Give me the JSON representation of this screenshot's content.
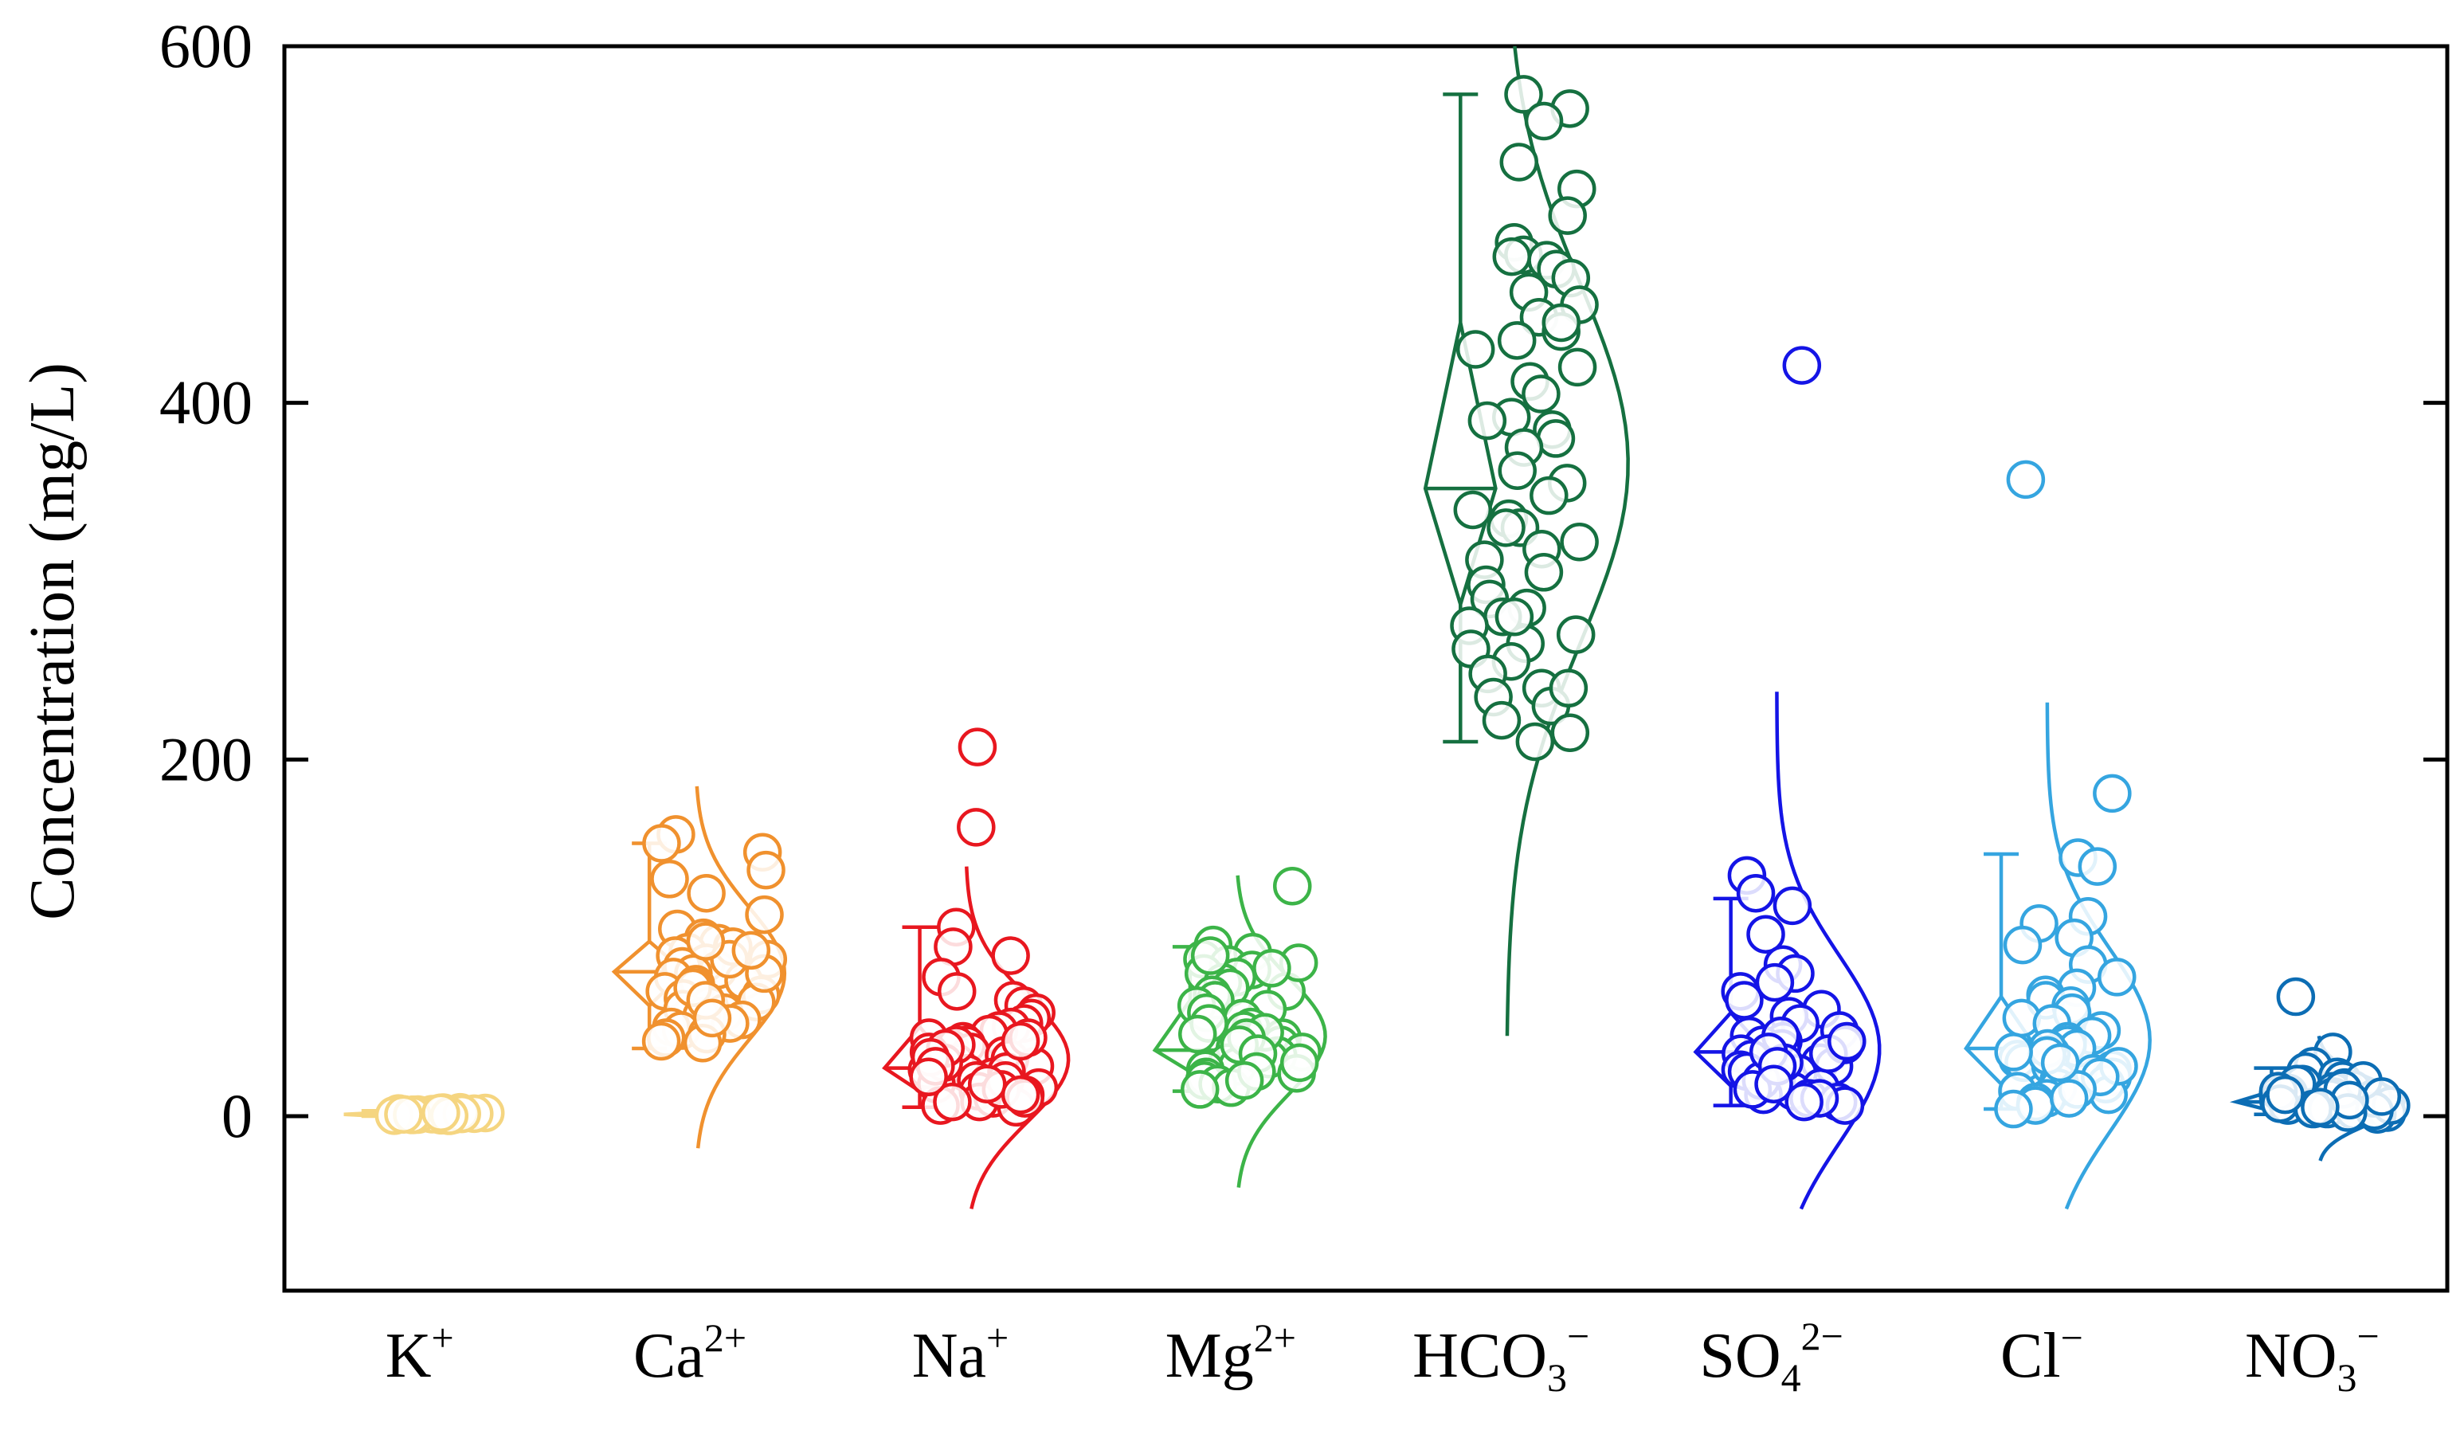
{
  "chart_data": {
    "type": "box-scatter-distribution",
    "title": "",
    "xlabel": "",
    "ylabel": "Concentration (mg/L)",
    "ylim": [
      -100,
      600
    ],
    "yticks": [
      0,
      200,
      400,
      600
    ],
    "ytick_labels": [
      "0",
      "200",
      "400",
      "600"
    ],
    "grid": false,
    "categories": [
      {
        "key": "K",
        "base": "K",
        "sub": "",
        "sup": "+",
        "color": "#F5D580",
        "whisker_low": 0,
        "whisker_high": 3,
        "box_low": 0,
        "box_high": 2,
        "median": 1,
        "curve_low": -2,
        "curve_high": 5,
        "curve_width": 0.05,
        "points": [
          0.5,
          1,
          1.5,
          0.8,
          1.2,
          2,
          0.3,
          1.8,
          0.6,
          1.1,
          0.9,
          1.4,
          2.2,
          0.4,
          1.6,
          0.7,
          1.3,
          1.0,
          0.2,
          1.9
        ]
      },
      {
        "key": "Ca",
        "base": "Ca",
        "sub": "",
        "sup": "2+",
        "color": "#F0912E",
        "whisker_low": 38,
        "whisker_high": 153,
        "box_low": 62,
        "box_high": 98,
        "median": 81,
        "curve_low": -18,
        "curve_high": 185,
        "curve_width": 0.33,
        "points": [
          158,
          153,
          148,
          138,
          133,
          125,
          113,
          105,
          100,
          97,
          95,
          92,
          90,
          88,
          86,
          84,
          82,
          80,
          78,
          76,
          74,
          72,
          70,
          68,
          66,
          64,
          62,
          60,
          58,
          56,
          54,
          52,
          50,
          48,
          46,
          44,
          42,
          41,
          95,
          88,
          80,
          72,
          65,
          55,
          98,
          93
        ]
      },
      {
        "key": "Na",
        "base": "Na",
        "sub": "",
        "sup": "+",
        "color": "#E8171F",
        "whisker_low": 5,
        "whisker_high": 106,
        "box_low": 14,
        "box_high": 50,
        "median": 27,
        "curve_low": -52,
        "curve_high": 140,
        "curve_width": 0.38,
        "points": [
          207,
          162,
          106,
          95,
          90,
          78,
          70,
          65,
          62,
          58,
          55,
          52,
          50,
          48,
          46,
          44,
          42,
          40,
          38,
          36,
          34,
          32,
          30,
          28,
          26,
          24,
          22,
          20,
          18,
          16,
          14,
          12,
          10,
          8,
          6,
          5,
          44,
          40,
          36,
          30,
          25,
          20,
          15,
          10,
          8,
          42,
          38,
          33,
          28,
          22,
          18,
          12
        ]
      },
      {
        "key": "Mg",
        "base": "Mg",
        "sub": "",
        "sup": "2+",
        "color": "#3CB448",
        "whisker_low": 14,
        "whisker_high": 95,
        "box_low": 25,
        "box_high": 65,
        "median": 37,
        "curve_low": -40,
        "curve_high": 135,
        "curve_width": 0.33,
        "points": [
          129,
          96,
          92,
          88,
          85,
          82,
          80,
          78,
          75,
          72,
          70,
          68,
          65,
          62,
          60,
          58,
          55,
          52,
          50,
          48,
          46,
          44,
          42,
          40,
          38,
          36,
          34,
          32,
          30,
          28,
          26,
          24,
          22,
          20,
          18,
          16,
          15,
          47,
          44,
          40,
          35,
          30,
          25,
          20,
          90,
          86,
          83
        ]
      },
      {
        "key": "HCO3",
        "base": "HCO",
        "sub": "3",
        "sup": "−",
        "color": "#157040",
        "whisker_low": 210,
        "whisker_high": 573,
        "box_low": 287,
        "box_high": 445,
        "median": 352,
        "curve_low": 45,
        "curve_high": 600,
        "curve_width": 0.45,
        "points": [
          573,
          565,
          558,
          535,
          520,
          505,
          490,
          483,
          480,
          475,
          470,
          462,
          455,
          448,
          440,
          435,
          430,
          420,
          412,
          405,
          392,
          385,
          380,
          375,
          362,
          355,
          348,
          340,
          335,
          330,
          322,
          318,
          312,
          305,
          298,
          290,
          285,
          280,
          275,
          270,
          265,
          262,
          255,
          248,
          240,
          235,
          230,
          222,
          215,
          210,
          482,
          445,
          390,
          330,
          280,
          240
        ]
      },
      {
        "key": "SO4",
        "base": "SO",
        "sub": "4",
        "sup": "2−",
        "color": "#1414E6",
        "whisker_low": 6,
        "whisker_high": 122,
        "box_low": 17,
        "box_high": 58,
        "median": 36,
        "curve_low": -52,
        "curve_high": 238,
        "curve_width": 0.38,
        "points": [
          421,
          135,
          125,
          118,
          102,
          85,
          80,
          75,
          70,
          65,
          60,
          56,
          52,
          48,
          45,
          42,
          40,
          38,
          35,
          32,
          30,
          28,
          26,
          24,
          22,
          20,
          18,
          16,
          14,
          12,
          10,
          8,
          6,
          45,
          40,
          35,
          30,
          25,
          20,
          15,
          10,
          8,
          42,
          36,
          28,
          18
        ]
      },
      {
        "key": "Cl",
        "base": "Cl",
        "sub": "",
        "sup": "−",
        "color": "#35A5E0",
        "whisker_low": 4,
        "whisker_high": 147,
        "box_low": 18,
        "box_high": 67,
        "median": 38,
        "curve_low": -52,
        "curve_high": 232,
        "curve_width": 0.38,
        "points": [
          357,
          181,
          145,
          140,
          112,
          108,
          100,
          96,
          85,
          78,
          72,
          68,
          65,
          62,
          58,
          55,
          52,
          48,
          45,
          42,
          40,
          38,
          35,
          32,
          30,
          28,
          26,
          24,
          22,
          20,
          18,
          16,
          14,
          12,
          10,
          8,
          6,
          4,
          38,
          34,
          28,
          22,
          15,
          10,
          36,
          30
        ]
      },
      {
        "key": "NO3",
        "base": "NO",
        "sub": "3",
        "sup": "−",
        "color": "#0C6DB4",
        "whisker_low": 1,
        "whisker_high": 27,
        "box_low": 3,
        "box_high": 14,
        "median": 8,
        "curve_low": -25,
        "curve_high": 45,
        "curve_width": 0.32,
        "points": [
          67,
          36,
          28,
          25,
          22,
          20,
          18,
          16,
          15,
          14,
          13,
          12,
          11,
          10,
          9,
          8,
          7,
          6,
          5,
          4,
          3,
          2,
          1,
          18,
          14,
          10,
          6,
          3,
          20,
          15,
          11,
          7,
          4,
          2,
          12,
          9,
          5
        ]
      }
    ]
  }
}
